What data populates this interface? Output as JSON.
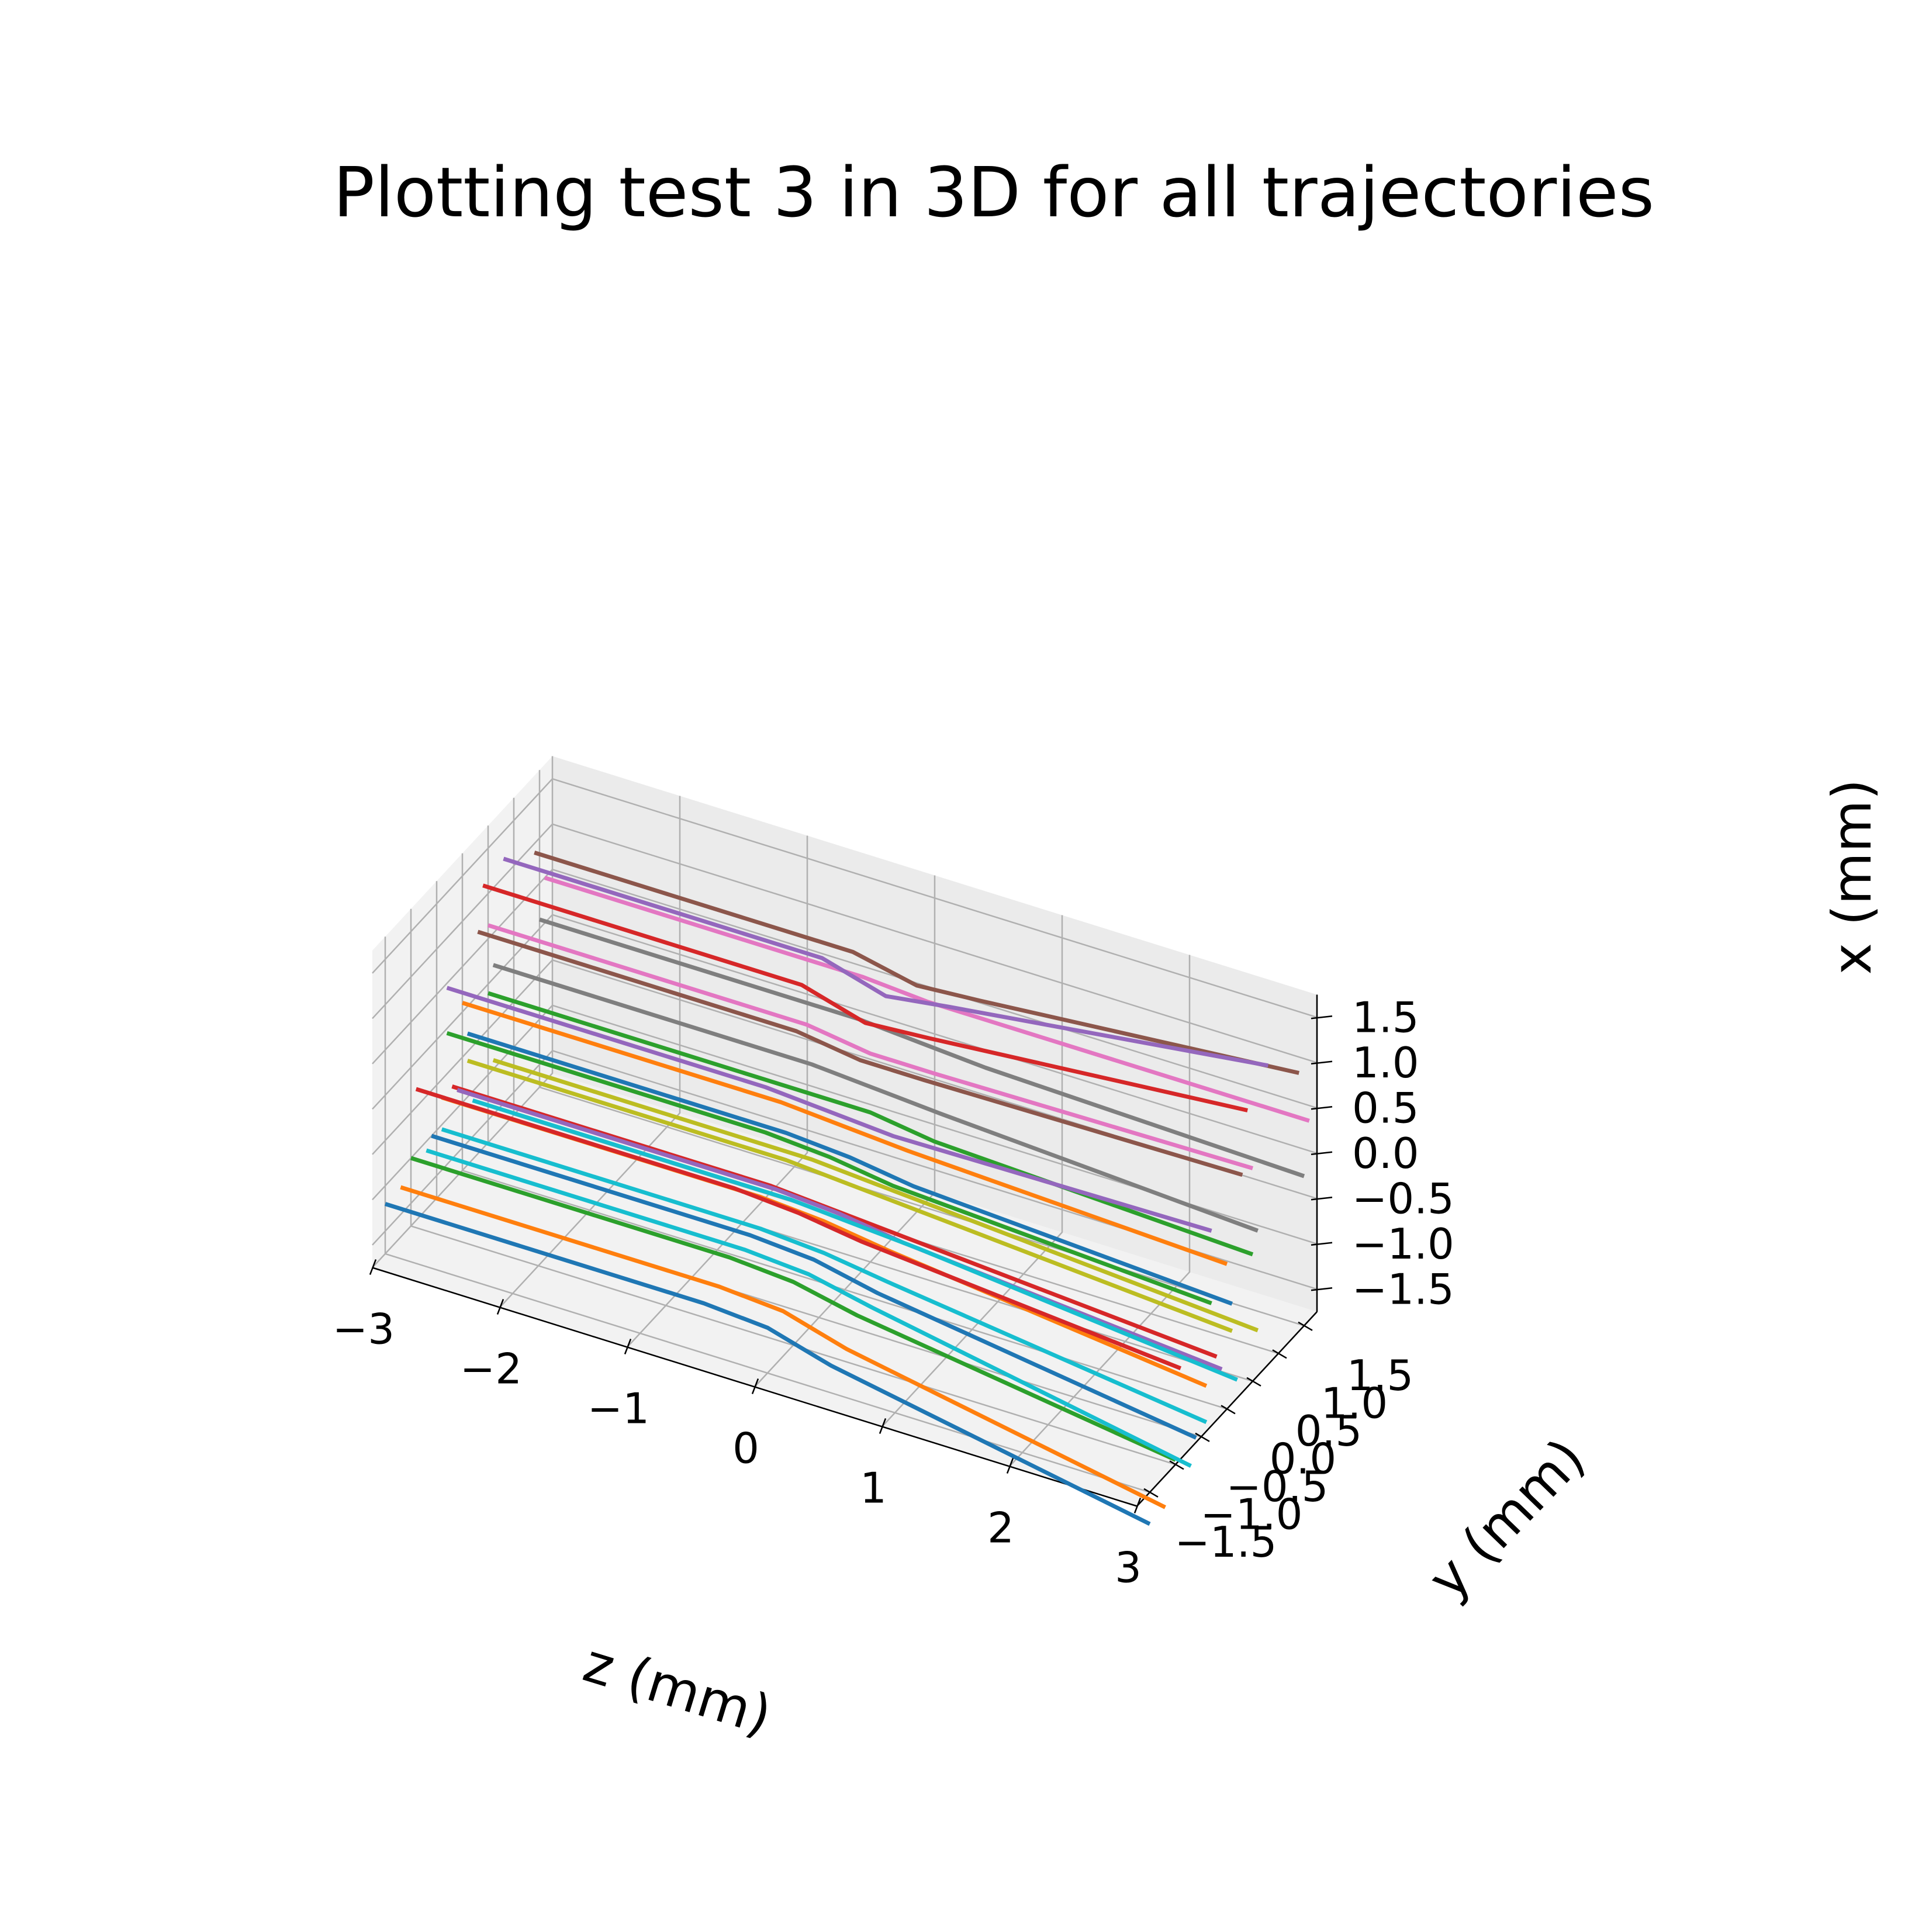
{
  "chart_data": {
    "type": "line",
    "projection": "3d",
    "title": "Plotting test 3 in 3D for all trajectories",
    "xlabel": "z (mm)",
    "ylabel": "y (mm)",
    "zlabel": "x (mm)",
    "z_axis_ticks": [
      "−3",
      "−2",
      "−1",
      "0",
      "1",
      "2",
      "3"
    ],
    "y_axis_ticks": [
      "−1.5",
      "−1.0",
      "−0.5",
      "0.0",
      "0.5",
      "1.0",
      "1.5"
    ],
    "x_axis_ticks": [
      "−1.5",
      "−1.0",
      "−0.5",
      "0.0",
      "0.5",
      "1.0",
      "1.5"
    ],
    "xlim": [
      -3,
      3
    ],
    "ylim": [
      -1.75,
      1.75
    ],
    "zlim": [
      -1.75,
      1.75
    ],
    "grid": true,
    "colors": [
      "#1f77b4",
      "#ff7f0e",
      "#2ca02c",
      "#d62728",
      "#9467bd",
      "#8c564b",
      "#e377c2",
      "#7f7f7f",
      "#bcbd22",
      "#17becf"
    ],
    "series": [
      {
        "color": "#1f77b4",
        "z": [
          -3.0,
          -0.5,
          0.0,
          0.5,
          3.0
        ],
        "y": [
          -1.5,
          -1.5,
          -1.5,
          -1.5,
          -1.5
        ],
        "x": [
          -1.2,
          -1.2,
          -1.25,
          -1.45,
          -2.1
        ]
      },
      {
        "color": "#ff7f0e",
        "z": [
          -3.0,
          -0.5,
          0.0,
          0.5,
          3.0
        ],
        "y": [
          -1.2,
          -1.2,
          -1.2,
          -1.2,
          -1.2
        ],
        "x": [
          -1.2,
          -1.2,
          -1.25,
          -1.45,
          -2.1
        ]
      },
      {
        "color": "#2ca02c",
        "z": [
          -3.0,
          -0.5,
          0.0,
          0.5,
          3.0
        ],
        "y": [
          -1.0,
          -1.0,
          -1.0,
          -1.0,
          -1.0
        ],
        "x": [
          -1.0,
          -1.0,
          -1.05,
          -1.2,
          -1.7
        ]
      },
      {
        "color": "#17becf",
        "z": [
          -3.0,
          -0.5,
          0.0,
          0.5,
          3.0
        ],
        "y": [
          -0.7,
          -0.7,
          -0.7,
          -0.7,
          -0.7
        ],
        "x": [
          -1.1,
          -1.1,
          -1.15,
          -1.3,
          -1.95
        ]
      },
      {
        "color": "#1f77b4",
        "z": [
          -3.0,
          -0.5,
          0.0,
          0.5,
          3.0
        ],
        "y": [
          -0.6,
          -0.6,
          -0.6,
          -0.6,
          -0.6
        ],
        "x": [
          -1.0,
          -1.0,
          -1.05,
          -1.2,
          -1.7
        ]
      },
      {
        "color": "#17becf",
        "z": [
          -3.0,
          -0.5,
          0.0,
          0.5,
          3.0
        ],
        "y": [
          -0.4,
          -0.4,
          -0.4,
          -0.4,
          -0.4
        ],
        "x": [
          -1.05,
          -1.05,
          -1.1,
          -1.2,
          -1.65
        ]
      },
      {
        "color": "#ff7f0e",
        "z": [
          -3.0,
          -0.5,
          0.0,
          0.5,
          3.0
        ],
        "y": [
          -0.4,
          -0.4,
          -0.4,
          -0.4,
          -0.4
        ],
        "x": [
          -0.7,
          -0.7,
          -0.75,
          -0.85,
          -1.25
        ]
      },
      {
        "color": "#d62728",
        "z": [
          -3.0,
          -0.5,
          0.0,
          0.5,
          3.0
        ],
        "y": [
          -0.2,
          -0.2,
          -0.2,
          -0.2,
          -0.2
        ],
        "x": [
          -0.7,
          -0.7,
          -0.75,
          -0.8,
          -1.05
        ]
      },
      {
        "color": "#d62728",
        "z": [
          -3.0,
          -0.5,
          0.0,
          0.5,
          3.0
        ],
        "y": [
          -0.9,
          -0.9,
          -0.9,
          -0.9,
          -0.9
        ],
        "x": [
          -0.3,
          -0.3,
          -0.35,
          -0.45,
          -0.75
        ]
      },
      {
        "color": "#9467bd",
        "z": [
          -3.0,
          -0.5,
          0.0,
          0.5,
          3.0
        ],
        "y": [
          -0.1,
          -0.1,
          -0.1,
          -0.1,
          -0.1
        ],
        "x": [
          -0.8,
          -0.8,
          -0.85,
          -0.95,
          -1.25
        ]
      },
      {
        "color": "#17becf",
        "z": [
          -3.0,
          -0.5,
          0.0,
          0.5,
          3.0
        ],
        "y": [
          0.2,
          0.2,
          0.2,
          0.2,
          0.2
        ],
        "x": [
          -1.1,
          -1.1,
          -1.15,
          -1.2,
          -1.55
        ]
      },
      {
        "color": "#bcbd22",
        "z": [
          -3.0,
          -0.5,
          0.0,
          0.5,
          3.0
        ],
        "y": [
          0.1,
          0.1,
          0.1,
          0.1,
          0.1
        ],
        "x": [
          -0.6,
          -0.6,
          -0.65,
          -0.7,
          -0.95
        ]
      },
      {
        "color": "#bcbd22",
        "z": [
          -3.0,
          -0.5,
          0.0,
          0.5,
          3.0
        ],
        "y": [
          0.6,
          0.6,
          0.6,
          0.6,
          0.6
        ],
        "x": [
          -0.9,
          -0.9,
          -0.95,
          -1.0,
          -1.25
        ]
      },
      {
        "color": "#1f77b4",
        "z": [
          -3.0,
          -0.5,
          0.0,
          0.5,
          3.0
        ],
        "y": [
          0.1,
          0.1,
          0.1,
          0.1,
          0.1
        ],
        "x": [
          -0.3,
          -0.3,
          -0.35,
          -0.45,
          -0.65
        ]
      },
      {
        "color": "#2ca02c",
        "z": [
          -3.0,
          -0.5,
          0.0,
          0.5,
          3.0
        ],
        "y": [
          -0.3,
          -0.3,
          -0.3,
          -0.3,
          -0.3
        ],
        "x": [
          -0.05,
          -0.05,
          -0.1,
          -0.2,
          -0.4
        ]
      },
      {
        "color": "#2ca02c",
        "z": [
          -3.0,
          -0.5,
          0.0,
          0.5,
          3.0
        ],
        "y": [
          0.5,
          0.5,
          0.5,
          0.5,
          0.5
        ],
        "x": [
          -0.1,
          -0.1,
          -0.1,
          -0.2,
          -0.35
        ]
      },
      {
        "color": "#ff7f0e",
        "z": [
          -3.0,
          -0.5,
          0.0,
          0.5,
          3.0
        ],
        "y": [
          0.0,
          0.0,
          0.0,
          0.0,
          0.0
        ],
        "x": [
          0.1,
          0.1,
          0.05,
          0.0,
          -0.15
        ]
      },
      {
        "color": "#7f7f7f",
        "z": [
          -3.0,
          -0.5,
          0.0,
          0.5,
          3.0
        ],
        "y": [
          0.6,
          0.6,
          0.6,
          0.6,
          0.6
        ],
        "x": [
          0.15,
          0.15,
          0.1,
          0.05,
          -0.15
        ]
      },
      {
        "color": "#7f7f7f",
        "z": [
          -3.0,
          -0.5,
          0.0,
          0.5,
          3.0
        ],
        "y": [
          1.5,
          1.5,
          1.5,
          1.5,
          1.5
        ],
        "x": [
          0.1,
          0.1,
          0.05,
          0.0,
          -0.1
        ]
      },
      {
        "color": "#9467bd",
        "z": [
          -3.0,
          -0.5,
          0.0,
          0.5,
          3.0
        ],
        "y": [
          -0.3,
          -0.3,
          -0.3,
          -0.3,
          -0.3
        ],
        "x": [
          0.45,
          0.45,
          0.4,
          0.35,
          0.4
        ]
      },
      {
        "color": "#e377c2",
        "z": [
          -3.0,
          -0.5,
          0.0,
          0.5,
          3.0
        ],
        "y": [
          0.5,
          0.5,
          0.5,
          0.5,
          0.5
        ],
        "x": [
          0.65,
          0.65,
          0.55,
          0.55,
          0.6
        ]
      },
      {
        "color": "#e377c2",
        "z": [
          -3.0,
          -0.5,
          0.0,
          0.5,
          3.0
        ],
        "y": [
          1.6,
          1.6,
          1.6,
          1.6,
          1.6
        ],
        "x": [
          0.5,
          0.5,
          0.45,
          0.45,
          0.45
        ]
      },
      {
        "color": "#8c564b",
        "z": [
          -3.0,
          -0.5,
          0.0,
          0.5,
          3.0
        ],
        "y": [
          0.3,
          0.3,
          0.3,
          0.3,
          0.3
        ],
        "x": [
          0.7,
          0.7,
          0.6,
          0.6,
          0.65
        ]
      },
      {
        "color": "#8c564b",
        "z": [
          -3.0,
          -0.5,
          0.0,
          0.5,
          3.0
        ],
        "y": [
          1.4,
          1.4,
          1.4,
          1.4,
          1.4
        ],
        "x": [
          0.9,
          0.9,
          0.75,
          0.8,
          1.1
        ]
      },
      {
        "color": "#d62728",
        "z": [
          -3.0,
          -0.5,
          0.0,
          0.5,
          3.0
        ],
        "y": [
          0.4,
          0.4,
          0.4,
          0.4,
          0.4
        ],
        "x": [
          1.15,
          1.15,
          0.95,
          1.0,
          1.3
        ]
      },
      {
        "color": "#9467bd",
        "z": [
          -3.0,
          -0.5,
          0.0,
          0.5,
          3.0
        ],
        "y": [
          0.8,
          0.8,
          0.8,
          0.8,
          0.8
        ],
        "x": [
          1.2,
          1.2,
          1.0,
          1.1,
          1.55
        ]
      }
    ]
  }
}
